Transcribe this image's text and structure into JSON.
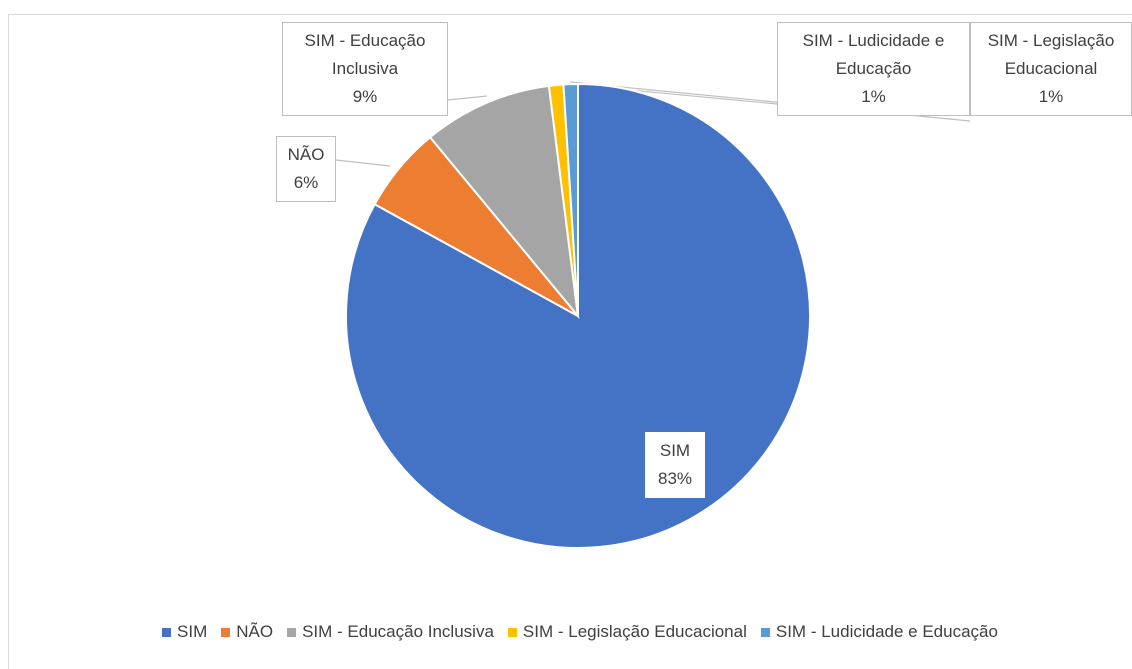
{
  "chart_data": {
    "type": "pie",
    "categories": [
      "SIM",
      "NÃO",
      "SIM - Educação Inclusiva",
      "SIM - Legislação Educacional",
      "SIM - Ludicidade e Educação"
    ],
    "values": [
      83,
      6,
      9,
      1,
      1
    ],
    "value_labels": [
      "83%",
      "6%",
      "9%",
      "1%",
      "1%"
    ],
    "colors": [
      "#4472c4",
      "#ed7d31",
      "#a5a5a5",
      "#ffc000",
      "#5b9bd5"
    ],
    "legend": "bottom"
  }
}
